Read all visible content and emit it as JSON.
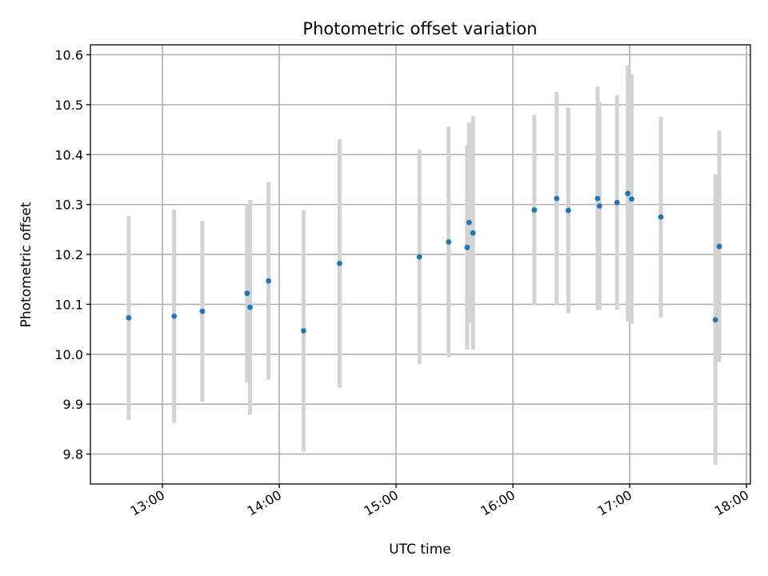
{
  "chart_data": {
    "type": "scatter",
    "title": "Photometric offset variation",
    "xlabel": "UTC time",
    "ylabel": "Photometric offset",
    "xlim_minutes": [
      743,
      1082
    ],
    "ylim": [
      9.74,
      10.62
    ],
    "x_ticks": [
      {
        "minutes": 780,
        "label": "13:00"
      },
      {
        "minutes": 840,
        "label": "14:00"
      },
      {
        "minutes": 900,
        "label": "15:00"
      },
      {
        "minutes": 960,
        "label": "16:00"
      },
      {
        "minutes": 1020,
        "label": "17:00"
      },
      {
        "minutes": 1080,
        "label": "18:00"
      }
    ],
    "y_ticks": [
      {
        "value": 9.8,
        "label": "9.8"
      },
      {
        "value": 9.9,
        "label": "9.9"
      },
      {
        "value": 10.0,
        "label": "10.0"
      },
      {
        "value": 10.1,
        "label": "10.1"
      },
      {
        "value": 10.2,
        "label": "10.2"
      },
      {
        "value": 10.3,
        "label": "10.3"
      },
      {
        "value": 10.4,
        "label": "10.4"
      },
      {
        "value": 10.5,
        "label": "10.5"
      },
      {
        "value": 10.6,
        "label": "10.6"
      }
    ],
    "grid": true,
    "marker_color": "#1f77b4",
    "errorbar_color": "#d3d3d3",
    "points": [
      {
        "t": 762.7,
        "y": 10.073,
        "err": 0.204
      },
      {
        "t": 786.0,
        "y": 10.076,
        "err": 0.214
      },
      {
        "t": 800.5,
        "y": 10.086,
        "err": 0.181
      },
      {
        "t": 823.5,
        "y": 10.122,
        "err": 0.179
      },
      {
        "t": 825.0,
        "y": 10.094,
        "err": 0.215
      },
      {
        "t": 834.5,
        "y": 10.147,
        "err": 0.198
      },
      {
        "t": 852.5,
        "y": 10.047,
        "err": 0.242
      },
      {
        "t": 871.0,
        "y": 10.182,
        "err": 0.249
      },
      {
        "t": 912.0,
        "y": 10.195,
        "err": 0.215
      },
      {
        "t": 927.0,
        "y": 10.225,
        "err": 0.231
      },
      {
        "t": 936.5,
        "y": 10.214,
        "err": 0.205
      },
      {
        "t": 937.5,
        "y": 10.264,
        "err": 0.2
      },
      {
        "t": 939.5,
        "y": 10.243,
        "err": 0.234
      },
      {
        "t": 971.0,
        "y": 10.289,
        "err": 0.191
      },
      {
        "t": 982.5,
        "y": 10.312,
        "err": 0.214
      },
      {
        "t": 988.5,
        "y": 10.288,
        "err": 0.206
      },
      {
        "t": 1003.5,
        "y": 10.312,
        "err": 0.224
      },
      {
        "t": 1004.5,
        "y": 10.297,
        "err": 0.208
      },
      {
        "t": 1013.5,
        "y": 10.304,
        "err": 0.215
      },
      {
        "t": 1019.0,
        "y": 10.322,
        "err": 0.257
      },
      {
        "t": 1021.0,
        "y": 10.311,
        "err": 0.25
      },
      {
        "t": 1036.0,
        "y": 10.275,
        "err": 0.201
      },
      {
        "t": 1064.0,
        "y": 10.069,
        "err": 0.291
      },
      {
        "t": 1066.0,
        "y": 10.216,
        "err": 0.232
      }
    ]
  }
}
